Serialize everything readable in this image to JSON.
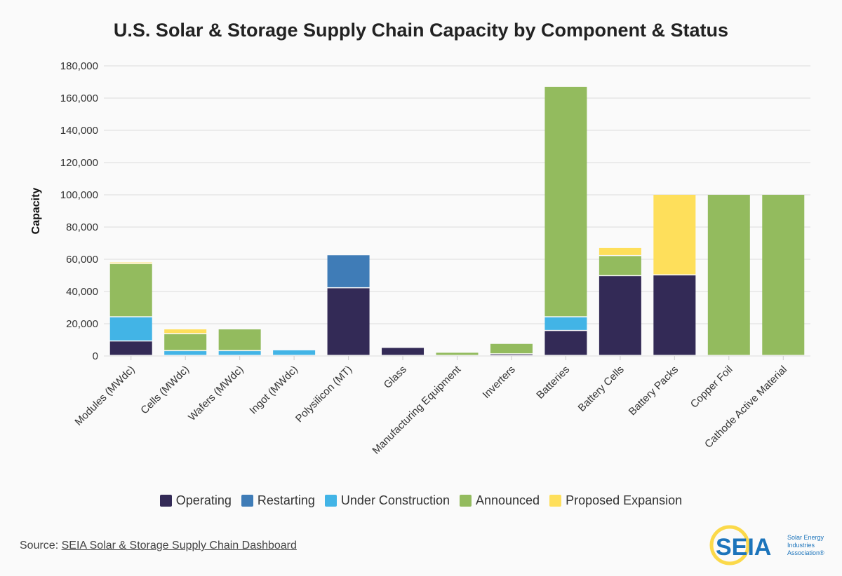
{
  "chart_data": {
    "type": "bar",
    "stacked": true,
    "title": "U.S. Solar & Storage Supply Chain Capacity by Component & Status",
    "xlabel": "",
    "ylabel": "Capacity",
    "ylim": [
      0,
      180000
    ],
    "yticks": [
      "0",
      "20,000",
      "40,000",
      "60,000",
      "80,000",
      "100,000",
      "120,000",
      "140,000",
      "160,000",
      "180,000"
    ],
    "grid": true,
    "legend_placement": "bottom",
    "categories": [
      "Modules (MWdc)",
      "Cells (MWdc)",
      "Wafers (MWdc)",
      "Ingot (MWdc)",
      "Polysilicon (MT)",
      "Glass",
      "Manufacturing Equipment",
      "Inverters",
      "Batteries",
      "Battery Cells",
      "Battery Packs",
      "Copper Foil",
      "Cathode Active Material"
    ],
    "series": [
      {
        "name": "Operating",
        "color": "#332a56",
        "values": [
          9000,
          0,
          0,
          0,
          42000,
          5000,
          0,
          1000,
          15500,
          49500,
          50000,
          0,
          0
        ]
      },
      {
        "name": "Restarting",
        "color": "#3f7cb7",
        "values": [
          0,
          0,
          0,
          0,
          20500,
          0,
          0,
          0,
          0,
          0,
          0,
          0,
          0
        ]
      },
      {
        "name": "Under Construction",
        "color": "#42b4e6",
        "values": [
          15000,
          3000,
          3000,
          3500,
          0,
          0,
          0,
          0,
          8500,
          0,
          0,
          0,
          0
        ]
      },
      {
        "name": "Announced",
        "color": "#93bb5e",
        "values": [
          33000,
          10500,
          13500,
          0,
          0,
          0,
          2000,
          6500,
          143000,
          12500,
          0,
          100000,
          100000
        ]
      },
      {
        "name": "Proposed Expansion",
        "color": "#fedf5b",
        "values": [
          1000,
          3000,
          0,
          0,
          0,
          0,
          0,
          0,
          0,
          5000,
          50000,
          0,
          0
        ]
      }
    ]
  },
  "source": {
    "prefix": "Source: ",
    "link": "SEIA Solar & Storage Supply Chain Dashboard"
  },
  "logo": {
    "text": "SEIA",
    "subtitle": "Solar Energy Industries Association®"
  }
}
